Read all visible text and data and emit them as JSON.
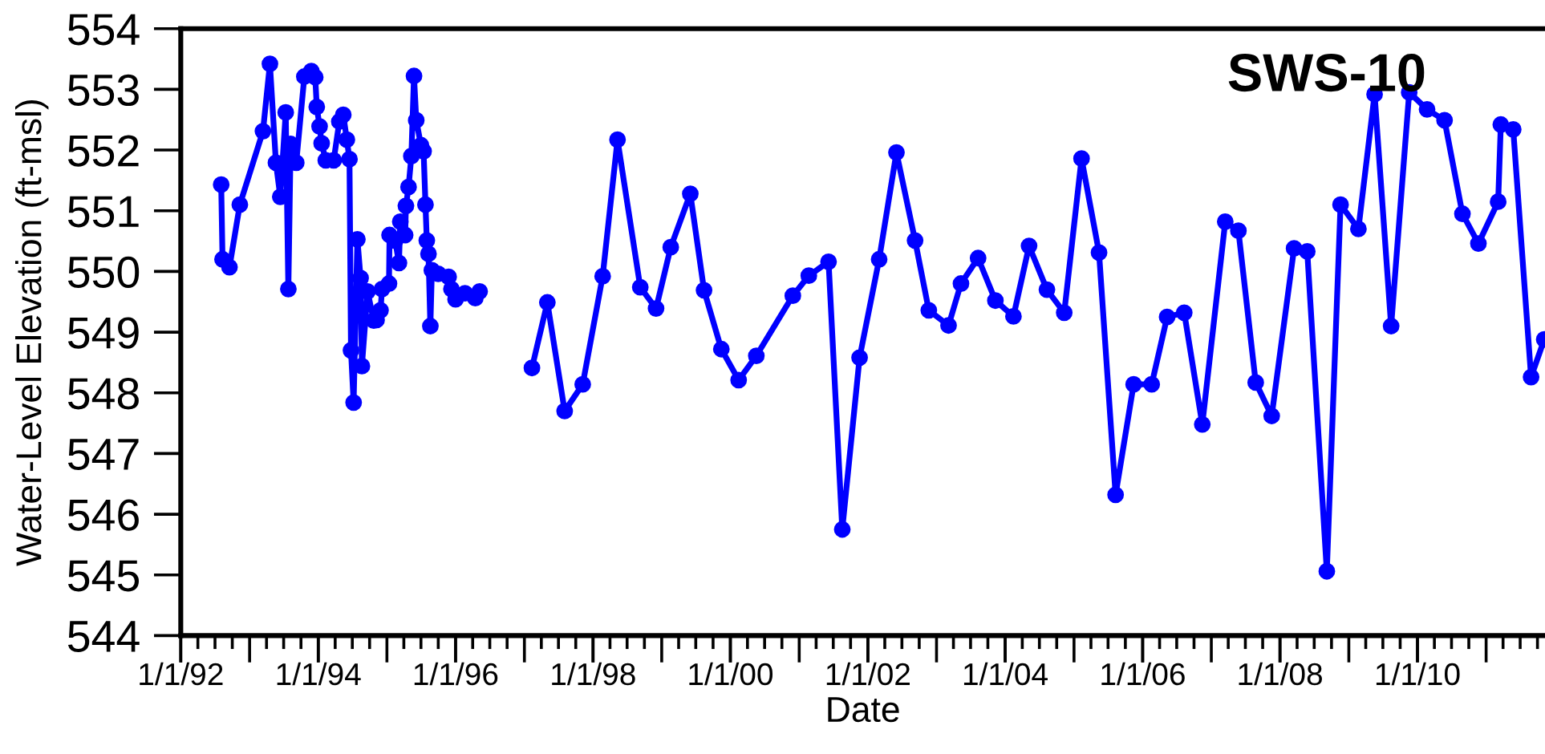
{
  "chart_data": {
    "type": "line",
    "title": "SWS-10",
    "xlabel": "Date",
    "ylabel": "Water-Level Elevation (ft-msl)",
    "x": [
      "1992-08-03",
      "1992-08-10",
      "1992-09-16",
      "1992-11-10",
      "1993-03-13",
      "1993-04-19",
      "1993-05-21",
      "1993-06-13",
      "1993-07-12",
      "1993-07-26",
      "1993-08-07",
      "1993-09-06",
      "1993-10-19",
      "1993-11-25",
      "1993-12-16",
      "1993-12-24",
      "1994-01-08",
      "1994-01-19",
      "1994-02-10",
      "1994-03-24",
      "1994-04-23",
      "1994-05-14",
      "1994-06-02",
      "1994-06-16",
      "1994-06-24",
      "1994-07-08",
      "1994-07-28",
      "1994-08-14",
      "1994-08-21",
      "1994-09-20",
      "1994-10-23",
      "1994-11-07",
      "1994-11-28",
      "1994-12-06",
      "1995-01-12",
      "1995-01-15",
      "1995-02-14",
      "1995-03-06",
      "1995-03-13",
      "1995-04-08",
      "1995-04-12",
      "1995-04-26",
      "1995-05-11",
      "1995-05-25",
      "1995-06-06",
      "1995-07-01",
      "1995-07-15",
      "1995-07-25",
      "1995-08-01",
      "1995-08-10",
      "1995-08-20",
      "1995-08-28",
      "1995-10-01",
      "1995-11-25",
      "1995-12-10",
      "1996-01-01",
      "1996-02-20",
      "1996-04-15",
      "1996-05-08",
      "1996-09-01",
      "1997-02-10",
      "1997-05-03",
      "1997-08-03",
      "1997-11-07",
      "1998-02-21",
      "1998-05-11",
      "1998-09-09",
      "1998-12-02",
      "1999-02-18",
      "1999-06-02",
      "1999-08-14",
      "1999-11-14",
      "2000-02-14",
      "2000-05-18",
      "2000-11-28",
      "2001-02-21",
      "2001-06-06",
      "2001-08-18",
      "2001-11-18",
      "2002-03-02",
      "2002-06-02",
      "2002-09-09",
      "2002-11-21",
      "2003-03-06",
      "2003-05-11",
      "2003-08-10",
      "2003-11-10",
      "2004-02-14",
      "2004-05-07",
      "2004-08-10",
      "2004-11-10",
      "2005-02-10",
      "2005-05-14",
      "2005-08-10",
      "2005-11-14",
      "2006-02-18",
      "2006-05-11",
      "2006-08-10",
      "2006-11-14",
      "2007-03-16",
      "2007-05-25",
      "2007-08-25",
      "2007-11-18",
      "2008-03-16",
      "2008-05-25",
      "2008-09-06",
      "2008-11-18",
      "2009-02-21",
      "2009-05-18",
      "2009-08-14",
      "2009-11-18",
      "2010-02-21",
      "2010-05-25",
      "2010-08-28",
      "2010-11-21",
      "2011-03-06",
      "2011-03-20",
      "2011-05-25",
      "2011-08-28",
      "2011-11-06"
    ],
    "series": [
      {
        "color": "#0000ff",
        "values": [
          551.43,
          550.2,
          550.07,
          551.1,
          552.31,
          553.42,
          551.79,
          551.23,
          552.62,
          549.71,
          552.1,
          551.79,
          553.21,
          553.3,
          553.2,
          552.71,
          552.39,
          552.11,
          551.83,
          551.83,
          552.47,
          552.58,
          552.17,
          551.85,
          548.7,
          547.84,
          550.53,
          549.89,
          548.44,
          549.67,
          549.19,
          549.2,
          549.36,
          549.71,
          549.8,
          550.6,
          550.51,
          550.14,
          550.82,
          550.6,
          551.08,
          551.39,
          551.9,
          553.22,
          552.49,
          552.08,
          551.98,
          551.1,
          550.51,
          550.29,
          549.1,
          550.02,
          549.96,
          549.91,
          549.71,
          549.54,
          549.64,
          549.56,
          549.67,
          null,
          548.41,
          549.49,
          547.7,
          548.14,
          549.92,
          552.17,
          549.74,
          549.39,
          550.4,
          551.28,
          549.69,
          548.72,
          548.21,
          548.61,
          549.6,
          549.93,
          550.16,
          545.75,
          548.58,
          550.2,
          551.96,
          550.51,
          549.36,
          549.11,
          549.8,
          550.22,
          549.52,
          549.26,
          550.42,
          549.7,
          549.32,
          551.86,
          550.31,
          546.32,
          548.14,
          548.14,
          549.25,
          549.32,
          547.48,
          550.82,
          550.67,
          548.17,
          547.62,
          550.38,
          550.33,
          545.06,
          551.1,
          550.7,
          552.92,
          549.1,
          552.95,
          552.67,
          552.49,
          550.95,
          550.46,
          551.15,
          552.42,
          552.34,
          548.26,
          548.88
        ]
      }
    ],
    "xlim": [
      "1992-01-01",
      "2011-11-10"
    ],
    "xticks": [
      {
        "value": "1992-01-01",
        "label": "1/1/92"
      },
      {
        "value": "1994-01-01",
        "label": "1/1/94"
      },
      {
        "value": "1996-01-01",
        "label": "1/1/96"
      },
      {
        "value": "1998-01-01",
        "label": "1/1/98"
      },
      {
        "value": "2000-01-01",
        "label": "1/1/00"
      },
      {
        "value": "2002-01-01",
        "label": "1/1/02"
      },
      {
        "value": "2004-01-01",
        "label": "1/1/04"
      },
      {
        "value": "2006-01-01",
        "label": "1/1/06"
      },
      {
        "value": "2008-01-01",
        "label": "1/1/08"
      },
      {
        "value": "2010-01-01",
        "label": "1/1/10"
      }
    ],
    "ylim": [
      544,
      554
    ],
    "yticks": [
      544,
      545,
      546,
      547,
      548,
      549,
      550,
      551,
      552,
      553,
      554
    ],
    "grid": false,
    "legend": false,
    "marker": "circle",
    "line_style": "solid"
  }
}
